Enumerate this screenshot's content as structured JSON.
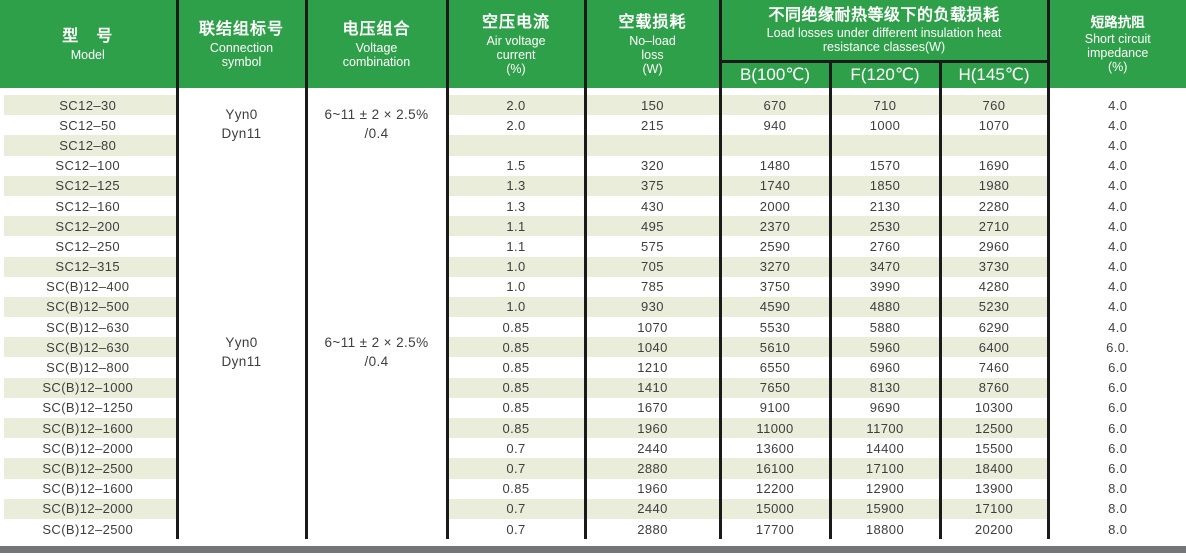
{
  "colors": {
    "header_green": "#2EA049",
    "stripe": "#E9EDDA",
    "divider_black": "#1A1A1A",
    "footer_bar_gray": "#747579",
    "body_text": "#3E3E3E"
  },
  "header": {
    "model": {
      "zh": "型　号",
      "en": "Model"
    },
    "connection": {
      "zh": "联结组标号",
      "en": "Connection\nsymbol"
    },
    "voltage": {
      "zh": "电压组合",
      "en": "Voltage\ncombination"
    },
    "air_current": {
      "zh": "空压电流",
      "en": "Air voltage\ncurrent\n(%)"
    },
    "no_load": {
      "zh": "空载损耗",
      "en": "No–load\nloss\n(W)"
    },
    "load_losses": {
      "zh": "不同绝缘耐热等级下的负载损耗",
      "en": "Load losses under different insulation heat\nresistance classes(W)",
      "sub": [
        "B(100℃)",
        "F(120℃)",
        "H(145℃)"
      ]
    },
    "impedance": {
      "zh": "短路抗阻",
      "en": "Short circuit\nimpedance\n(%)"
    }
  },
  "groups": [
    {
      "connection_lines": "Yyn0\nDyn11",
      "voltage_lines": "6~11 ± 2 × 2.5%\n/0.4"
    },
    {
      "connection_lines": "Yyn0\nDyn11",
      "voltage_lines": "6~11 ± 2 × 2.5%\n/0.4"
    }
  ],
  "rows": [
    {
      "model": "SC12–30",
      "air_current": "2.0",
      "no_load": "150",
      "b100": "670",
      "f120": "710",
      "h145": "760",
      "impedance": "4.0"
    },
    {
      "model": "SC12–50",
      "air_current": "2.0",
      "no_load": "215",
      "b100": "940",
      "f120": "1000",
      "h145": "1070",
      "impedance": "4.0"
    },
    {
      "model": "SC12–80",
      "air_current": "",
      "no_load": "",
      "b100": "",
      "f120": "",
      "h145": "",
      "impedance": "4.0"
    },
    {
      "model": "SC12–100",
      "air_current": "1.5",
      "no_load": "320",
      "b100": "1480",
      "f120": "1570",
      "h145": "1690",
      "impedance": "4.0"
    },
    {
      "model": "SC12–125",
      "air_current": "1.3",
      "no_load": "375",
      "b100": "1740",
      "f120": "1850",
      "h145": "1980",
      "impedance": "4.0"
    },
    {
      "model": "SC12–160",
      "air_current": "1.3",
      "no_load": "430",
      "b100": "2000",
      "f120": "2130",
      "h145": "2280",
      "impedance": "4.0"
    },
    {
      "model": "SC12–200",
      "air_current": "1.1",
      "no_load": "495",
      "b100": "2370",
      "f120": "2530",
      "h145": "2710",
      "impedance": "4.0"
    },
    {
      "model": "SC12–250",
      "air_current": "1.1",
      "no_load": "575",
      "b100": "2590",
      "f120": "2760",
      "h145": "2960",
      "impedance": "4.0"
    },
    {
      "model": "SC12–315",
      "air_current": "1.0",
      "no_load": "705",
      "b100": "3270",
      "f120": "3470",
      "h145": "3730",
      "impedance": "4.0"
    },
    {
      "model": "SC(B)12–400",
      "air_current": "1.0",
      "no_load": "785",
      "b100": "3750",
      "f120": "3990",
      "h145": "4280",
      "impedance": "4.0"
    },
    {
      "model": "SC(B)12–500",
      "air_current": "1.0",
      "no_load": "930",
      "b100": "4590",
      "f120": "4880",
      "h145": "5230",
      "impedance": "4.0"
    },
    {
      "model": "SC(B)12–630",
      "air_current": "0.85",
      "no_load": "1070",
      "b100": "5530",
      "f120": "5880",
      "h145": "6290",
      "impedance": "4.0"
    },
    {
      "model": "SC(B)12–630",
      "air_current": "0.85",
      "no_load": "1040",
      "b100": "5610",
      "f120": "5960",
      "h145": "6400",
      "impedance": "6.0."
    },
    {
      "model": "SC(B)12–800",
      "air_current": "0.85",
      "no_load": "1210",
      "b100": "6550",
      "f120": "6960",
      "h145": "7460",
      "impedance": "6.0"
    },
    {
      "model": "SC(B)12–1000",
      "air_current": "0.85",
      "no_load": "1410",
      "b100": "7650",
      "f120": "8130",
      "h145": "8760",
      "impedance": "6.0"
    },
    {
      "model": "SC(B)12–1250",
      "air_current": "0.85",
      "no_load": "1670",
      "b100": "9100",
      "f120": "9690",
      "h145": "10300",
      "impedance": "6.0"
    },
    {
      "model": "SC(B)12–1600",
      "air_current": "0.85",
      "no_load": "1960",
      "b100": "11000",
      "f120": "11700",
      "h145": "12500",
      "impedance": "6.0"
    },
    {
      "model": "SC(B)12–2000",
      "air_current": "0.7",
      "no_load": "2440",
      "b100": "13600",
      "f120": "14400",
      "h145": "15500",
      "impedance": "6.0"
    },
    {
      "model": "SC(B)12–2500",
      "air_current": "0.7",
      "no_load": "2880",
      "b100": "16100",
      "f120": "17100",
      "h145": "18400",
      "impedance": "6.0"
    },
    {
      "model": "SC(B)12–1600",
      "air_current": "0.85",
      "no_load": "1960",
      "b100": "12200",
      "f120": "12900",
      "h145": "13900",
      "impedance": "8.0"
    },
    {
      "model": "SC(B)12–2000",
      "air_current": "0.7",
      "no_load": "2440",
      "b100": "15000",
      "f120": "15900",
      "h145": "17100",
      "impedance": "8.0"
    },
    {
      "model": "SC(B)12–2500",
      "air_current": "0.7",
      "no_load": "2880",
      "b100": "17700",
      "f120": "18800",
      "h145": "20200",
      "impedance": "8.0"
    }
  ]
}
